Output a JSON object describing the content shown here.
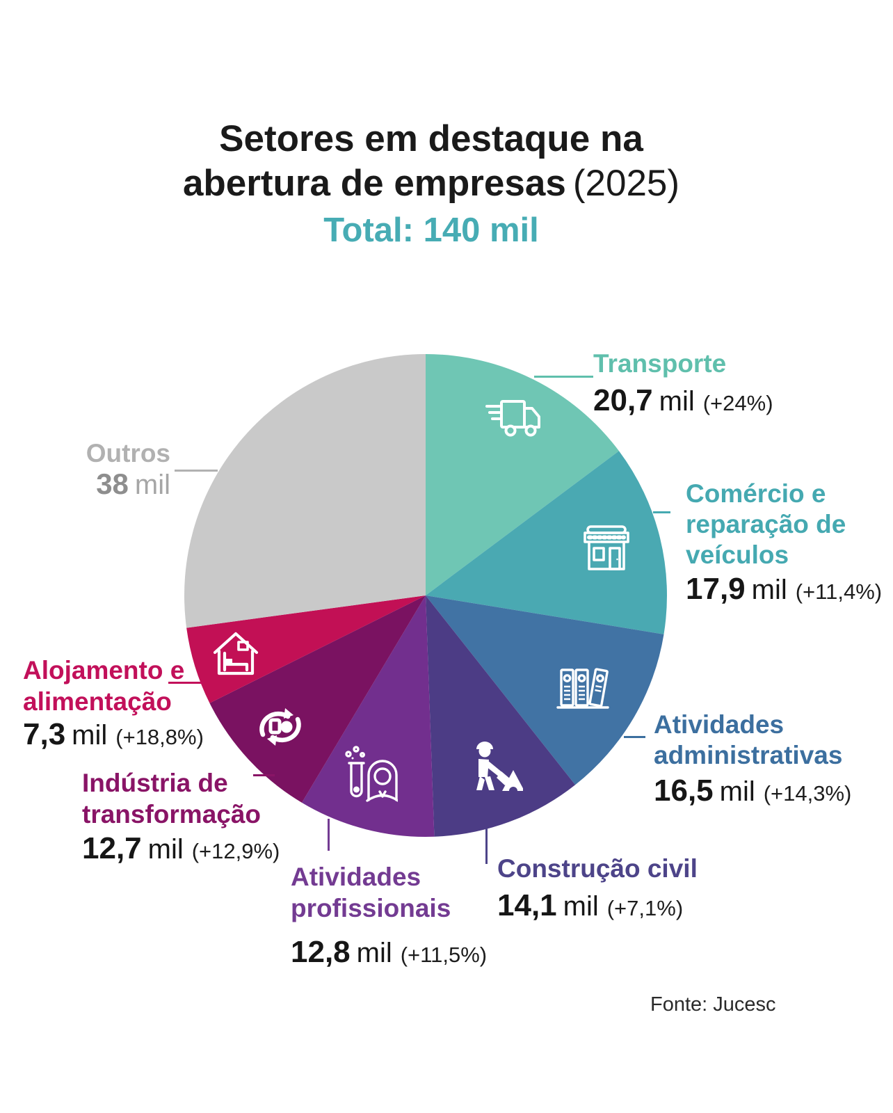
{
  "title": {
    "line1": "Setores em destaque na",
    "line2_bold": "abertura de empresas",
    "line2_suffix": "(2025)",
    "total": "Total: 140 mil",
    "total_color": "#47ACB4"
  },
  "source": {
    "text": "Fonte: Jucesc"
  },
  "chart_data": {
    "type": "pie",
    "title": "Setores em destaque na abertura de empresas (2025)",
    "total": {
      "value": 140,
      "unit": "mil",
      "label": "Total: 140 mil"
    },
    "start_angle_deg": 0,
    "direction": "clockwise",
    "legend_position": "around-slices",
    "slices": [
      {
        "id": "transporte",
        "name": "Transporte",
        "value": 20.7,
        "value_label": "20,7",
        "unit": "mil",
        "growth": "(+24%)",
        "color": "#6FC6B4",
        "label_color": "#5FBFAC",
        "icon": "truck-icon",
        "label_lines": [
          "Transporte"
        ]
      },
      {
        "id": "comercio",
        "name": "Comércio e reparação de veículos",
        "value": 17.9,
        "value_label": "17,9",
        "unit": "mil",
        "growth": "(+11,4%)",
        "color": "#4AA9B2",
        "label_color": "#45A9B1",
        "icon": "storefront-icon",
        "label_lines": [
          "Comércio e",
          "reparação de",
          "veículos"
        ]
      },
      {
        "id": "administrativas",
        "name": "Atividades administrativas",
        "value": 16.5,
        "value_label": "16,5",
        "unit": "mil",
        "growth": "(+14,3%)",
        "color": "#4173A4",
        "label_color": "#3C6F9F",
        "icon": "binders-icon",
        "label_lines": [
          "Atividades",
          "administrativas"
        ]
      },
      {
        "id": "construcao",
        "name": "Construção civil",
        "value": 14.1,
        "value_label": "14,1",
        "unit": "mil",
        "growth": "(+7,1%)",
        "color": "#4C3C85",
        "label_color": "#4D4489",
        "icon": "construction-worker-icon",
        "label_lines": [
          "Construção civil"
        ]
      },
      {
        "id": "profissionais",
        "name": "Atividades profissionais",
        "value": 12.8,
        "value_label": "12,8",
        "unit": "mil",
        "growth": "(+11,5%)",
        "color": "#722F8E",
        "label_color": "#733B92",
        "icon": "scientist-icon",
        "label_lines": [
          "Atividades",
          "profissionais"
        ]
      },
      {
        "id": "industria",
        "name": "Indústria de transformação",
        "value": 12.7,
        "value_label": "12,7",
        "unit": "mil",
        "growth": "(+12,9%)",
        "color": "#7A1261",
        "label_color": "#891466",
        "icon": "transformation-arrows-icon",
        "label_lines": [
          "Indústria de",
          "transformação"
        ]
      },
      {
        "id": "alojamento",
        "name": "Alojamento e alimentação",
        "value": 7.3,
        "value_label": "7,3",
        "unit": "mil",
        "growth": "(+18,8%)",
        "color": "#C21055",
        "label_color": "#C2105A",
        "icon": "house-bed-icon",
        "label_lines": [
          "Alojamento e",
          "alimentação"
        ]
      },
      {
        "id": "outros",
        "name": "Outros",
        "value": 38,
        "value_label": "38",
        "unit": "mil",
        "growth": null,
        "color": "#C9C9C9",
        "label_color": "#B1B1B1",
        "value_color": "#8E8E8E",
        "icon": null,
        "label_lines": [
          "Outros"
        ]
      }
    ]
  }
}
